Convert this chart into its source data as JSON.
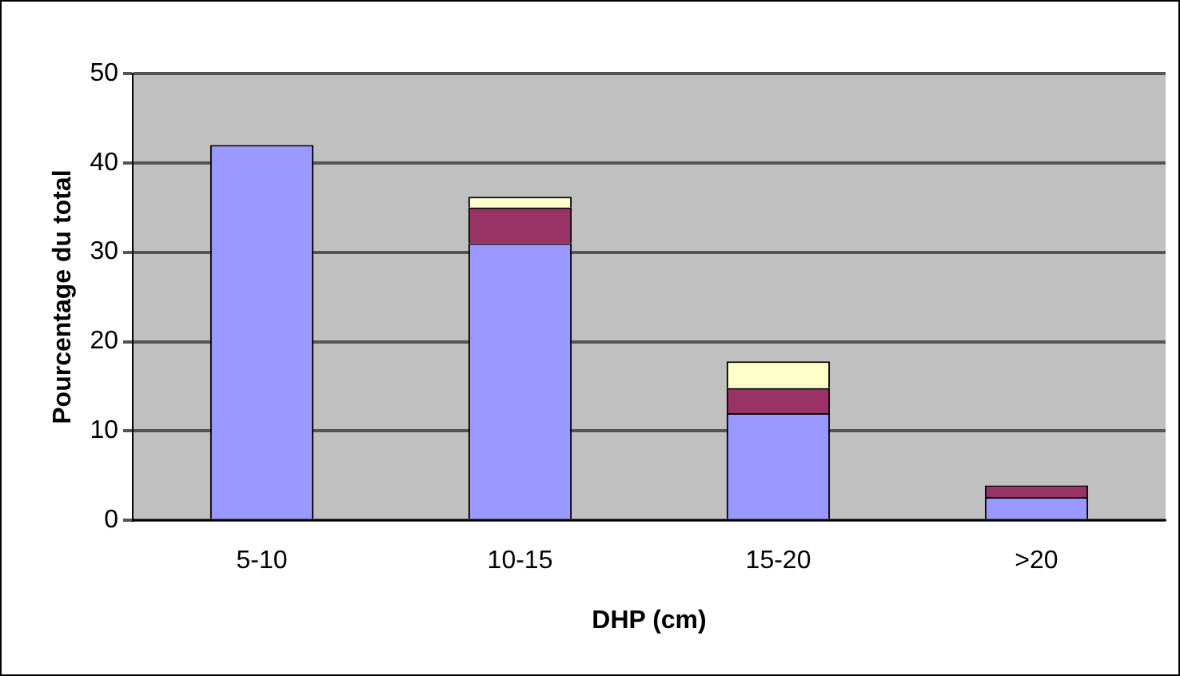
{
  "chart_data": {
    "type": "bar",
    "stacked": true,
    "xlabel": "DHP (cm)",
    "ylabel": "Pourcentage du total",
    "categories": [
      "5-10",
      "10-15",
      "15-20",
      ">20"
    ],
    "series": [
      {
        "color": "#9999ff",
        "values": [
          42,
          31,
          12,
          2.6
        ]
      },
      {
        "color": "#993366",
        "values": [
          null,
          4,
          2.8,
          1.3
        ]
      },
      {
        "color": "#ffffcc",
        "values": [
          null,
          1.2,
          3,
          null
        ]
      }
    ],
    "ylim": [
      0,
      50
    ],
    "yticks": [
      0,
      10,
      20,
      30,
      40,
      50
    ],
    "grid": "y",
    "legend": false
  }
}
